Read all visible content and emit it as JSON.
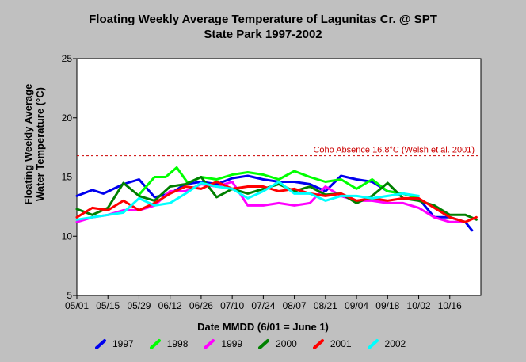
{
  "chart_data": {
    "type": "line",
    "title": "Floating Weekly Average Temperature of Lagunitas Cr. @ SPT",
    "subtitle": "State Park 1997-2002",
    "xlabel": "Date MMDD (6/01 = June 1)",
    "ylabel_line1": "Floating Weekly Average",
    "ylabel_line2": "Water Temperature (°C)",
    "x_ticks": [
      {
        "label": "05/01",
        "day": 0
      },
      {
        "label": "05/15",
        "day": 14
      },
      {
        "label": "05/29",
        "day": 28
      },
      {
        "label": "06/12",
        "day": 42
      },
      {
        "label": "06/26",
        "day": 56
      },
      {
        "label": "07/10",
        "day": 70
      },
      {
        "label": "07/24",
        "day": 84
      },
      {
        "label": "08/07",
        "day": 98
      },
      {
        "label": "08/21",
        "day": 112
      },
      {
        "label": "09/04",
        "day": 126
      },
      {
        "label": "09/18",
        "day": 140
      },
      {
        "label": "10/02",
        "day": 154
      },
      {
        "label": "10/16",
        "day": 168
      }
    ],
    "xlim": [
      0,
      182
    ],
    "ylim": [
      5,
      25
    ],
    "y_ticks": [
      5,
      10,
      15,
      20,
      25
    ],
    "grid": false,
    "legend_position": "bottom",
    "threshold": {
      "value": 16.8,
      "label": "Coho Absence 16.8°C (Welsh et al. 2001)",
      "color": "#cc0000"
    },
    "series": [
      {
        "name": "1997",
        "color": "#0000ee",
        "x": [
          0,
          7,
          12,
          21,
          28,
          35,
          42,
          49,
          56,
          63,
          70,
          77,
          84,
          91,
          98,
          105,
          112,
          119,
          126,
          133,
          140,
          147,
          154,
          161,
          168,
          175,
          178
        ],
        "y": [
          13.4,
          13.9,
          13.6,
          14.4,
          14.8,
          13.3,
          13.6,
          14.4,
          14.6,
          14.4,
          14.9,
          15.1,
          14.8,
          14.6,
          14.6,
          14.4,
          13.8,
          15.1,
          14.8,
          14.6,
          13.8,
          13.6,
          13.2,
          11.6,
          11.6,
          11.2,
          10.5
        ]
      },
      {
        "name": "1998",
        "color": "#00ff00",
        "x": [
          28,
          35,
          40,
          45,
          50,
          56,
          63,
          70,
          77,
          84,
          91,
          98,
          105,
          112,
          119,
          126,
          133,
          140,
          147,
          154
        ],
        "y": [
          13.5,
          15.0,
          15.0,
          15.8,
          14.5,
          15.0,
          14.8,
          15.2,
          15.4,
          15.2,
          14.8,
          15.5,
          15.0,
          14.6,
          14.8,
          14.0,
          14.8,
          13.8,
          13.6,
          13.2
        ]
      },
      {
        "name": "1999",
        "color": "#ff00ff",
        "x": [
          0,
          7,
          14,
          21,
          28,
          35,
          42,
          49,
          56,
          63,
          70,
          77,
          84,
          91,
          98,
          105,
          112,
          119,
          126,
          133,
          140,
          147,
          154,
          161,
          168,
          175
        ],
        "y": [
          11.2,
          11.6,
          11.8,
          12.2,
          12.2,
          12.6,
          13.8,
          13.8,
          14.4,
          14.2,
          14.6,
          12.6,
          12.6,
          12.8,
          12.6,
          12.8,
          14.2,
          13.4,
          13.0,
          13.0,
          12.8,
          12.8,
          12.4,
          11.6,
          11.2,
          11.2
        ]
      },
      {
        "name": "2000",
        "color": "#008000",
        "x": [
          0,
          7,
          14,
          21,
          28,
          35,
          42,
          49,
          56,
          63,
          70,
          77,
          84,
          91,
          98,
          105,
          112,
          119,
          126,
          133,
          140,
          147,
          154,
          161,
          168,
          175,
          180
        ],
        "y": [
          12.3,
          11.8,
          12.4,
          14.5,
          13.4,
          13.0,
          14.2,
          14.4,
          15.0,
          13.3,
          14.0,
          13.6,
          14.0,
          14.4,
          13.8,
          14.2,
          13.5,
          13.6,
          12.8,
          13.4,
          14.5,
          13.2,
          13.0,
          12.6,
          11.8,
          11.8,
          11.4
        ]
      },
      {
        "name": "2001",
        "color": "#ff0000",
        "x": [
          0,
          7,
          14,
          21,
          28,
          35,
          42,
          49,
          56,
          63,
          70,
          77,
          84,
          91,
          98,
          105,
          112,
          119,
          126,
          133,
          140,
          147,
          154,
          161,
          168,
          175,
          180
        ],
        "y": [
          11.6,
          12.4,
          12.2,
          13.0,
          12.2,
          12.8,
          13.6,
          14.2,
          14.0,
          14.6,
          14.0,
          14.2,
          14.2,
          13.8,
          14.0,
          13.6,
          13.4,
          13.6,
          13.0,
          13.2,
          13.0,
          13.2,
          13.2,
          12.4,
          11.6,
          11.2,
          11.6
        ]
      },
      {
        "name": "2002",
        "color": "#00ffff",
        "x": [
          0,
          7,
          14,
          21,
          28,
          35,
          42,
          49,
          56,
          63,
          70,
          77,
          84,
          91,
          98,
          105,
          112,
          119,
          126,
          133,
          140,
          147,
          154
        ],
        "y": [
          11.4,
          11.6,
          11.8,
          12.0,
          13.2,
          12.6,
          12.8,
          13.6,
          14.5,
          14.2,
          14.0,
          13.2,
          13.8,
          14.6,
          13.6,
          13.6,
          13.0,
          13.4,
          13.4,
          13.2,
          13.4,
          13.6,
          13.4
        ]
      }
    ]
  }
}
